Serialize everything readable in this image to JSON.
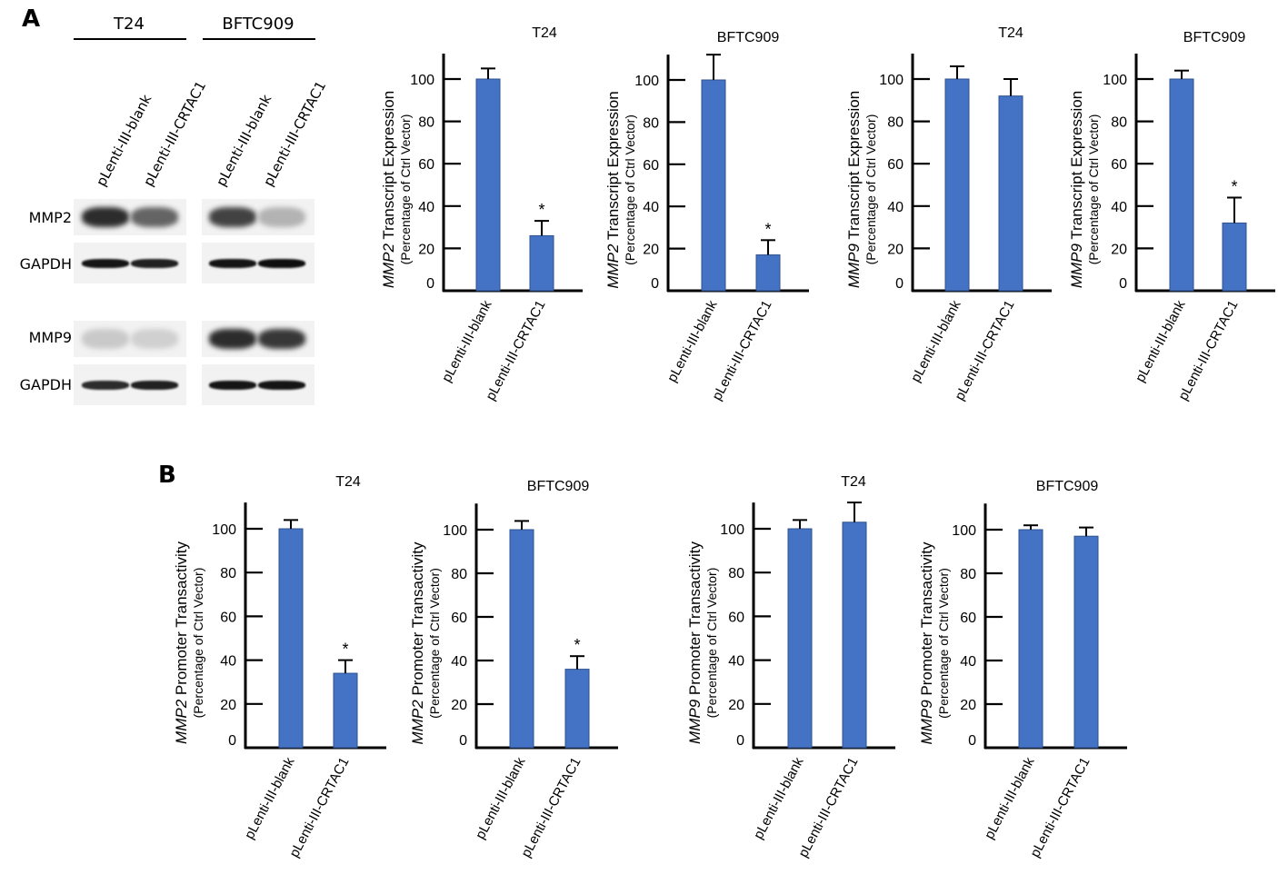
{
  "figure": {
    "panel_a_label": "A",
    "panel_b_label": "B"
  },
  "western_blot": {
    "cell_lines": [
      "T24",
      "BFTC909"
    ],
    "lanes": [
      "pLenti-III-blank",
      "pLenti-III-CRTAC1",
      "pLenti-III-blank",
      "pLenti-III-CRTAC1"
    ],
    "rows": [
      {
        "label": "MMP2",
        "intensities": [
          0.85,
          0.6,
          0.75,
          0.25
        ]
      },
      {
        "label": "GAPDH",
        "intensities": [
          0.95,
          0.9,
          0.95,
          0.98
        ]
      },
      {
        "label": "MMP9",
        "intensities": [
          0.15,
          0.12,
          0.85,
          0.8
        ]
      },
      {
        "label": "GAPDH",
        "intensities": [
          0.85,
          0.9,
          0.95,
          0.95
        ]
      }
    ]
  },
  "colors": {
    "bar_fill": "#4472C4",
    "bar_edge": "#2F528F",
    "axis": "#000000"
  },
  "chart_data": [
    {
      "type": "bar",
      "panel": "A",
      "title": "T24",
      "ylabel_gene": "MMP2",
      "ylabel_rest": " Transcript Expression",
      "ylabel2": "(Percentage of Ctrl Vector)",
      "categories": [
        "pLenti-III-blank",
        "pLenti-III-CRTAC1"
      ],
      "values": [
        100,
        26
      ],
      "errors": [
        5,
        7
      ],
      "significance": [
        "",
        "*"
      ],
      "yticks": [
        0,
        20,
        40,
        60,
        80,
        100
      ],
      "ylim": [
        0,
        112
      ]
    },
    {
      "type": "bar",
      "panel": "A",
      "title": "BFTC909",
      "ylabel_gene": "MMP2",
      "ylabel_rest": " Transcript Expression",
      "ylabel2": "(Percentage of Ctrl Vector)",
      "categories": [
        "pLenti-III-blank",
        "pLenti-III-CRTAC1"
      ],
      "values": [
        100,
        17
      ],
      "errors": [
        12,
        7
      ],
      "significance": [
        "",
        "*"
      ],
      "yticks": [
        0,
        20,
        40,
        60,
        80,
        100
      ],
      "ylim": [
        0,
        112
      ]
    },
    {
      "type": "bar",
      "panel": "A",
      "title": "T24",
      "ylabel_gene": "MMP9",
      "ylabel_rest": " Transcript Expression",
      "ylabel2": "(Percentage of Ctrl Vector)",
      "categories": [
        "pLenti-III-blank",
        "pLenti-III-CRTAC1"
      ],
      "values": [
        100,
        92
      ],
      "errors": [
        6,
        8
      ],
      "significance": [
        "",
        ""
      ],
      "yticks": [
        0,
        20,
        40,
        60,
        80,
        100
      ],
      "ylim": [
        0,
        112
      ]
    },
    {
      "type": "bar",
      "panel": "A",
      "title": "BFTC909",
      "ylabel_gene": "MMP9",
      "ylabel_rest": " Transcript Expression",
      "ylabel2": "(Percentage of Ctrl Vector)",
      "categories": [
        "pLenti-III-blank",
        "pLenti-III-CRTAC1"
      ],
      "values": [
        100,
        32
      ],
      "errors": [
        4,
        12
      ],
      "significance": [
        "",
        "*"
      ],
      "yticks": [
        0,
        20,
        40,
        60,
        80,
        100
      ],
      "ylim": [
        0,
        112
      ]
    },
    {
      "type": "bar",
      "panel": "B",
      "title": "T24",
      "ylabel_gene": "MMP2",
      "ylabel_rest": " Promoter Transactivity",
      "ylabel2": "(Percentage of Ctrl Vector)",
      "categories": [
        "pLenti-III-blank",
        "pLenti-III-CRTAC1"
      ],
      "values": [
        100,
        34
      ],
      "errors": [
        4,
        6
      ],
      "significance": [
        "",
        "*"
      ],
      "yticks": [
        0,
        20,
        40,
        60,
        80,
        100
      ],
      "ylim": [
        0,
        112
      ]
    },
    {
      "type": "bar",
      "panel": "B",
      "title": "BFTC909",
      "ylabel_gene": "MMP2",
      "ylabel_rest": " Promoter Transactivity",
      "ylabel2": "(Percentage of Ctrl Vector)",
      "categories": [
        "pLenti-III-blank",
        "pLenti-III-CRTAC1"
      ],
      "values": [
        100,
        36
      ],
      "errors": [
        4,
        6
      ],
      "significance": [
        "",
        "*"
      ],
      "yticks": [
        0,
        20,
        40,
        60,
        80,
        100
      ],
      "ylim": [
        0,
        112
      ]
    },
    {
      "type": "bar",
      "panel": "B",
      "title": "T24",
      "ylabel_gene": "MMP9",
      "ylabel_rest": " Promoter Transactivity",
      "ylabel2": "(Percentage of Ctrl Vector)",
      "categories": [
        "pLenti-III-blank",
        "pLenti-III-CRTAC1"
      ],
      "values": [
        100,
        103
      ],
      "errors": [
        4,
        9
      ],
      "significance": [
        "",
        ""
      ],
      "yticks": [
        0,
        20,
        40,
        60,
        80,
        100
      ],
      "ylim": [
        0,
        112
      ]
    },
    {
      "type": "bar",
      "panel": "B",
      "title": "BFTC909",
      "ylabel_gene": "MMP9",
      "ylabel_rest": " Promoter Transactivity",
      "ylabel2": "(Percentage of Ctrl Vector)",
      "categories": [
        "pLenti-III-blank",
        "pLenti-III-CRTAC1"
      ],
      "values": [
        100,
        97
      ],
      "errors": [
        2,
        4
      ],
      "significance": [
        "",
        ""
      ],
      "yticks": [
        0,
        20,
        40,
        60,
        80,
        100
      ],
      "ylim": [
        0,
        112
      ]
    }
  ]
}
